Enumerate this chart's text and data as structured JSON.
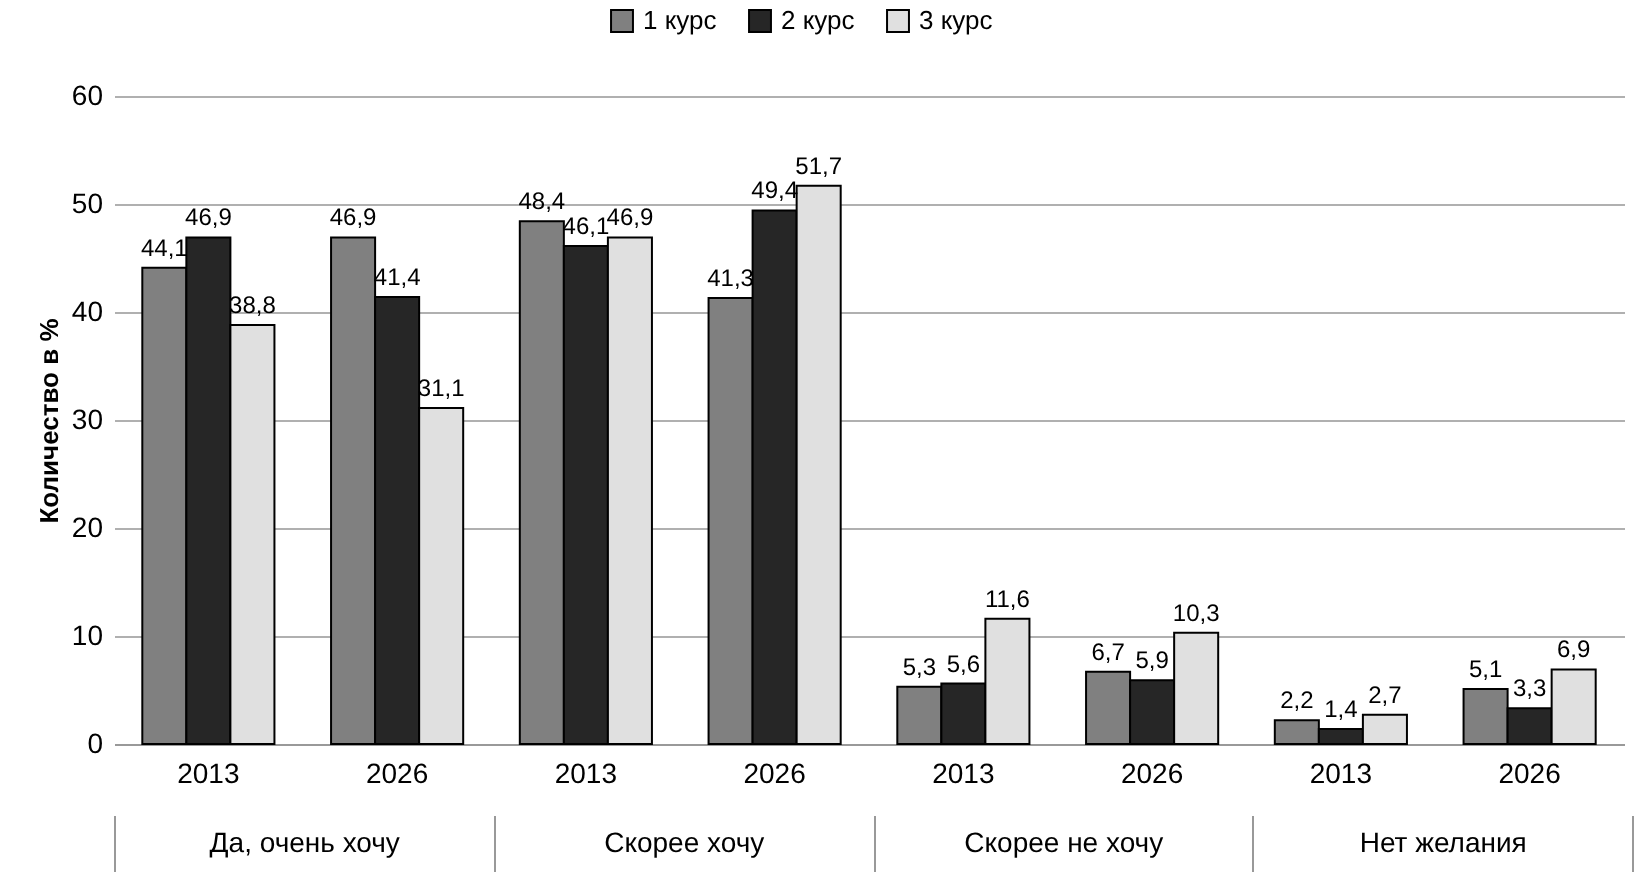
{
  "chart_data": {
    "type": "bar",
    "ylabel": "Количество в %",
    "categories": [
      "2013",
      "2026",
      "2013",
      "2026",
      "2013",
      "2026",
      "2013",
      "2026"
    ],
    "series": [
      {
        "name": "1 курс",
        "color": "#808080",
        "values": [
          44.1,
          46.9,
          48.4,
          41.3,
          5.3,
          6.7,
          2.2,
          5.1
        ],
        "value_labels": [
          "44,1",
          "46,9",
          "48,4",
          "41,3",
          "5,3",
          "6,7",
          "2,2",
          "5,1"
        ]
      },
      {
        "name": "2 курс",
        "color": "#262626",
        "values": [
          46.9,
          41.4,
          46.1,
          49.4,
          5.6,
          5.9,
          1.4,
          3.3
        ],
        "value_labels": [
          "46,9",
          "41,4",
          "46,1",
          "49,4",
          "5,6",
          "5,9",
          "1,4",
          "3,3"
        ]
      },
      {
        "name": "3 курс",
        "color": "#e0e0e0",
        "values": [
          38.8,
          31.1,
          46.9,
          51.7,
          11.6,
          10.3,
          2.7,
          6.9
        ],
        "value_labels": [
          "38,8",
          "31,1",
          "46,9",
          "51,7",
          "11,6",
          "10,3",
          "2,7",
          "6,9"
        ]
      }
    ],
    "annotations": [
      "Да, очень хочу",
      "Скорее хочу",
      "Скорее не хочу",
      "Нет желания"
    ],
    "ylim": [
      0,
      60
    ],
    "yticks": [
      0,
      10,
      20,
      30,
      40,
      50,
      60
    ],
    "grid": "y",
    "legend": "top"
  }
}
